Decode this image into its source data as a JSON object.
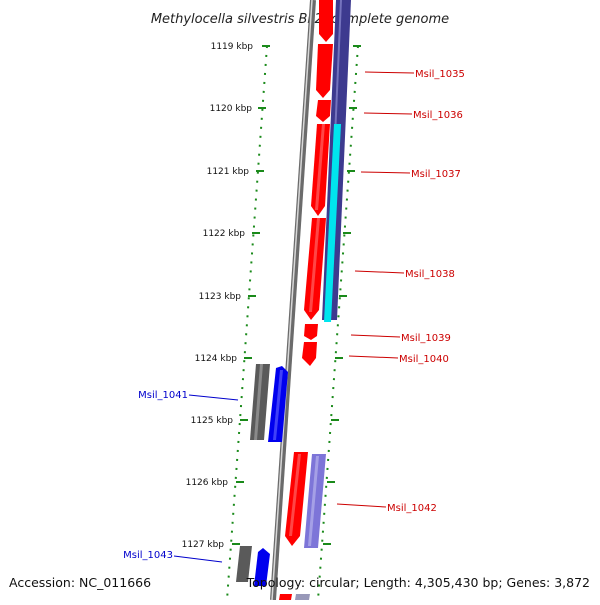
{
  "title": "Methylocella silvestris BL2, complete genome",
  "accession": "Accession: NC_011666",
  "summary": "Topology: circular; Length: 4,305,430 bp; Genes: 3,872",
  "colors": {
    "forward_gene": "#ff0000",
    "reverse_gene": "#0000ff",
    "pseudo_gray": "#666666",
    "highlight_cyan": "#00e5ee",
    "label_fwd": "#cc0000",
    "label_rev": "#0000cc",
    "ruler": "#1a8a1a"
  },
  "ruler": {
    "ticks": [
      "1119 kbp",
      "1120 kbp",
      "1121 kbp",
      "1122 kbp",
      "1123 kbp",
      "1124 kbp",
      "1125 kbp",
      "1126 kbp",
      "1127 kbp"
    ]
  },
  "genes": [
    {
      "id": "Msil_1035",
      "strand": "forward"
    },
    {
      "id": "Msil_1036",
      "strand": "forward"
    },
    {
      "id": "Msil_1037",
      "strand": "forward"
    },
    {
      "id": "Msil_1038",
      "strand": "forward"
    },
    {
      "id": "Msil_1039",
      "strand": "forward"
    },
    {
      "id": "Msil_1040",
      "strand": "forward"
    },
    {
      "id": "Msil_1041",
      "strand": "reverse"
    },
    {
      "id": "Msil_1042",
      "strand": "forward"
    },
    {
      "id": "Msil_1043",
      "strand": "reverse"
    }
  ]
}
